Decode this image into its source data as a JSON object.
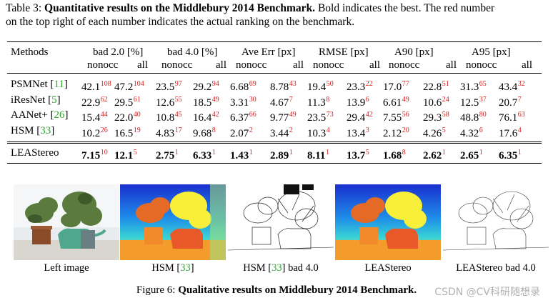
{
  "table_caption": {
    "prefix": "Table 3:",
    "bold": "Quantitative results on the Middlebury 2014 Benchmark.",
    "rest_line1": " Bold indicates the best. The red number",
    "line2": "on the top right of each number indicates the actual ranking on the benchmark."
  },
  "header": {
    "methods": "Methods",
    "groups": [
      "bad 2.0 [%]",
      "bad 4.0 [%]",
      "Ave Err [px]",
      "RMSE [px]",
      "A90 [px]",
      "A95 [px]"
    ],
    "sub": [
      "nonocc",
      "all"
    ]
  },
  "rows": [
    {
      "name": "PSMNet",
      "ref": "11",
      "vals": [
        [
          "42.1",
          "108"
        ],
        [
          "47.2",
          "104"
        ],
        [
          "23.5",
          "97"
        ],
        [
          "29.2",
          "94"
        ],
        [
          "6.68",
          "69"
        ],
        [
          "8.78",
          "43"
        ],
        [
          "19.4",
          "50"
        ],
        [
          "23.3",
          "22"
        ],
        [
          "17.0",
          "77"
        ],
        [
          "22.8",
          "51"
        ],
        [
          "31.3",
          "65"
        ],
        [
          "43.4",
          "32"
        ]
      ]
    },
    {
      "name": "iResNet",
      "ref": "5",
      "vals": [
        [
          "22.9",
          "62"
        ],
        [
          "29.5",
          "61"
        ],
        [
          "12.6",
          "55"
        ],
        [
          "18.5",
          "49"
        ],
        [
          "3.31",
          "30"
        ],
        [
          "4.67",
          "7"
        ],
        [
          "11.3",
          "8"
        ],
        [
          "13.9",
          "6"
        ],
        [
          "6.61",
          "49"
        ],
        [
          "10.6",
          "24"
        ],
        [
          "12.5",
          "37"
        ],
        [
          "20.7",
          "7"
        ]
      ]
    },
    {
      "name": "AANet+",
      "ref": "26",
      "vals": [
        [
          "15.4",
          "44"
        ],
        [
          "22.0",
          "40"
        ],
        [
          "10.8",
          "45"
        ],
        [
          "16.4",
          "42"
        ],
        [
          "6.37",
          "66"
        ],
        [
          "9.77",
          "49"
        ],
        [
          "23.5",
          "73"
        ],
        [
          "29.4",
          "42"
        ],
        [
          "7.55",
          "56"
        ],
        [
          "29.3",
          "58"
        ],
        [
          "48.8",
          "80"
        ],
        [
          "76.1",
          "63"
        ]
      ]
    },
    {
      "name": "HSM",
      "ref": "33",
      "vals": [
        [
          "10.2",
          "26"
        ],
        [
          "16.5",
          "19"
        ],
        [
          "4.83",
          "17"
        ],
        [
          "9.68",
          "8"
        ],
        [
          "2.07",
          "2"
        ],
        [
          "3.44",
          "2"
        ],
        [
          "10.3",
          "4"
        ],
        [
          "13.4",
          "3"
        ],
        [
          "2.12",
          "20"
        ],
        [
          "4.26",
          "5"
        ],
        [
          "4.32",
          "6"
        ],
        [
          "17.6",
          "4"
        ]
      ]
    }
  ],
  "ours": {
    "name": "LEAStereo",
    "vals": [
      [
        "7.15",
        "10"
      ],
      [
        "12.1",
        "5"
      ],
      [
        "2.75",
        "1"
      ],
      [
        "6.33",
        "1"
      ],
      [
        "1.43",
        "1"
      ],
      [
        "2.89",
        "1"
      ],
      [
        "8.11",
        "1"
      ],
      [
        "13.7",
        "5"
      ],
      [
        "1.68",
        "8"
      ],
      [
        "2.62",
        "1"
      ],
      [
        "2.65",
        "1"
      ],
      [
        "6.35",
        "1"
      ]
    ]
  },
  "figure": {
    "labels": [
      "Left image",
      "HSM [33]",
      "HSM [33] bad 4.0",
      "LEAStereo",
      "LEAStereo bad 4.0"
    ],
    "caption_prefix": "Figure 6:",
    "caption_bold": "Qualitative results on Middlebury 2014 Benchmark."
  },
  "watermark": "CSDN @CV科研随想录",
  "colors": {
    "rank": "#d21f1f",
    "ref": "#2ea82e"
  }
}
